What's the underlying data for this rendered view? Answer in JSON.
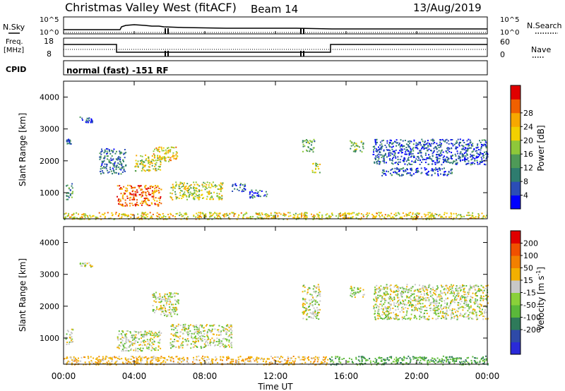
{
  "header": {
    "title": "Christmas Valley West (fitACF)",
    "beam": "Beam 14",
    "date": "13/Aug/2019"
  },
  "status_panels": {
    "nsky_label": "N.Sky",
    "nsearch_label": "N.Search",
    "log_top_tick": "10^5",
    "log_bottom_tick": "10^0",
    "freq_label_line1": "Freq.",
    "freq_label_line2": "[MHz]",
    "freq_ticks": [
      "18",
      "8"
    ],
    "nave_label": "Nave",
    "nave_ticks": [
      "60",
      "0"
    ],
    "cpid_label": "CPID",
    "cpid_text": "normal (fast) -151 RF"
  },
  "chart_data": [
    {
      "type": "heatmap",
      "name": "power",
      "ylabel": "Slant Range [km]",
      "ylim": [
        180,
        4500
      ],
      "yticks": [
        1000,
        2000,
        3000,
        4000
      ],
      "xlim": [
        0,
        24
      ],
      "colorbar_label": "Power [dB]",
      "colorbar_ticks": [
        "4",
        "8",
        "12",
        "16",
        "20",
        "24",
        "28"
      ],
      "colorbar_range": [
        0,
        32
      ],
      "colors": [
        "#0000ff",
        "#2b4db6",
        "#2e7c6f",
        "#4e9a57",
        "#8ec83a",
        "#f2d000",
        "#f7a800",
        "#f06000",
        "#e00000"
      ],
      "echo_regions": [
        {
          "t_start": 0.1,
          "t_end": 0.5,
          "r_low": 800,
          "r_high": 1300,
          "value_db": 10
        },
        {
          "t_start": 0.1,
          "t_end": 0.4,
          "r_low": 2550,
          "r_high": 2700,
          "value_db": 6
        },
        {
          "t_start": 0.9,
          "t_end": 1.6,
          "r_low": 3200,
          "r_high": 3400,
          "value_db": 6
        },
        {
          "t_start": 2.0,
          "t_end": 3.5,
          "r_low": 1600,
          "r_high": 2400,
          "value_db": 8
        },
        {
          "t_start": 3.0,
          "t_end": 5.5,
          "r_low": 600,
          "r_high": 1250,
          "value_db": 26
        },
        {
          "t_start": 4.0,
          "t_end": 5.5,
          "r_low": 1700,
          "r_high": 2200,
          "value_db": 18
        },
        {
          "t_start": 5.0,
          "t_end": 6.5,
          "r_low": 2000,
          "r_high": 2450,
          "value_db": 20
        },
        {
          "t_start": 6.0,
          "t_end": 9.0,
          "r_low": 800,
          "r_high": 1350,
          "value_db": 18
        },
        {
          "t_start": 9.5,
          "t_end": 10.3,
          "r_low": 1050,
          "r_high": 1300,
          "value_db": 8
        },
        {
          "t_start": 10.5,
          "t_end": 11.5,
          "r_low": 850,
          "r_high": 1100,
          "value_db": 6
        },
        {
          "t_start": 13.5,
          "t_end": 14.2,
          "r_low": 2300,
          "r_high": 2700,
          "value_db": 12
        },
        {
          "t_start": 14.0,
          "t_end": 14.5,
          "r_low": 1650,
          "r_high": 1950,
          "value_db": 16
        },
        {
          "t_start": 16.2,
          "t_end": 17.0,
          "r_low": 2300,
          "r_high": 2650,
          "value_db": 14
        },
        {
          "t_start": 17.5,
          "t_end": 24.0,
          "r_low": 1900,
          "r_high": 2700,
          "value_db": 6
        },
        {
          "t_start": 18.0,
          "t_end": 22.0,
          "r_low": 1550,
          "r_high": 1800,
          "value_db": 6
        },
        {
          "t_start": 0.0,
          "t_end": 24.0,
          "r_low": 180,
          "r_high": 400,
          "value_db": 20
        }
      ]
    },
    {
      "type": "heatmap",
      "name": "velocity",
      "ylabel": "Slant Range [km]",
      "ylim": [
        180,
        4500
      ],
      "yticks": [
        1000,
        2000,
        3000,
        4000
      ],
      "xlim": [
        0,
        24
      ],
      "xlabel": "Time UT",
      "xtick_labels": [
        "00:00",
        "04:00",
        "08:00",
        "12:00",
        "16:00",
        "20:00",
        "00:00"
      ],
      "colorbar_label": "Velocity [m s",
      "colorbar_label_exponent": "-1",
      "colorbar_label_close": "]",
      "colorbar_ticks": [
        "200",
        "100",
        "50",
        "15",
        "-15",
        "-50",
        "-100",
        "-200"
      ],
      "colors": [
        "#2a2ad8",
        "#2e4aa8",
        "#2e7a5a",
        "#5ab83a",
        "#8ad03a",
        "#c8c8c8",
        "#f2b000",
        "#f28000",
        "#f05000",
        "#e00000"
      ],
      "echo_regions": [
        {
          "t_start": 0.1,
          "t_end": 0.5,
          "r_low": 800,
          "r_high": 1300,
          "velocity": 0
        },
        {
          "t_start": 0.9,
          "t_end": 1.6,
          "r_low": 3250,
          "r_high": 3400,
          "velocity": 0
        },
        {
          "t_start": 3.0,
          "t_end": 5.5,
          "r_low": 600,
          "r_high": 1250,
          "velocity": 0
        },
        {
          "t_start": 5.0,
          "t_end": 6.5,
          "r_low": 1700,
          "r_high": 2450,
          "velocity": 0
        },
        {
          "t_start": 6.0,
          "t_end": 9.5,
          "r_low": 700,
          "r_high": 1450,
          "velocity": 0
        },
        {
          "t_start": 13.5,
          "t_end": 14.5,
          "r_low": 1600,
          "r_high": 2700,
          "velocity": 0
        },
        {
          "t_start": 16.2,
          "t_end": 17.0,
          "r_low": 2300,
          "r_high": 2650,
          "velocity": 0
        },
        {
          "t_start": 17.5,
          "t_end": 24.0,
          "r_low": 1600,
          "r_high": 2700,
          "velocity": 0
        },
        {
          "t_start": 0.0,
          "t_end": 15.0,
          "r_low": 180,
          "r_high": 450,
          "velocity": -30
        },
        {
          "t_start": 15.0,
          "t_end": 24.0,
          "r_low": 180,
          "r_high": 450,
          "velocity": 40
        }
      ]
    }
  ]
}
